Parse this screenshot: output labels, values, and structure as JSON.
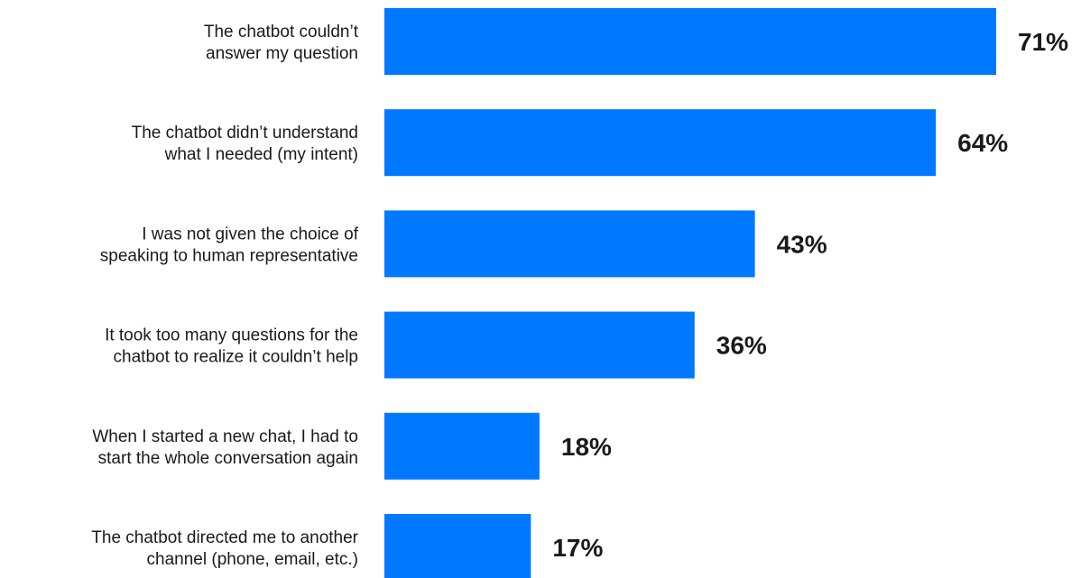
{
  "chart_data": {
    "type": "bar",
    "orientation": "horizontal",
    "categories": [
      [
        "The chatbot couldn’t",
        "answer my question"
      ],
      [
        "The chatbot didn’t understand",
        "what I needed (my intent)"
      ],
      [
        "I was not given the choice of",
        "speaking to human representative"
      ],
      [
        "It took too many questions for the",
        "chatbot to realize it couldn’t help"
      ],
      [
        "When I started a new chat, I had to",
        "start the whole conversation again"
      ],
      [
        "The chatbot directed me to another",
        "channel (phone, email, etc.)"
      ]
    ],
    "values": [
      71,
      64,
      43,
      36,
      18,
      17
    ],
    "value_labels": [
      "71%",
      "64%",
      "43%",
      "36%",
      "18%",
      "17%"
    ],
    "xlim": [
      0,
      100
    ],
    "bar_color": "#0078ff",
    "text_color": "#1a1a1a",
    "grid": false,
    "legend": "none"
  }
}
